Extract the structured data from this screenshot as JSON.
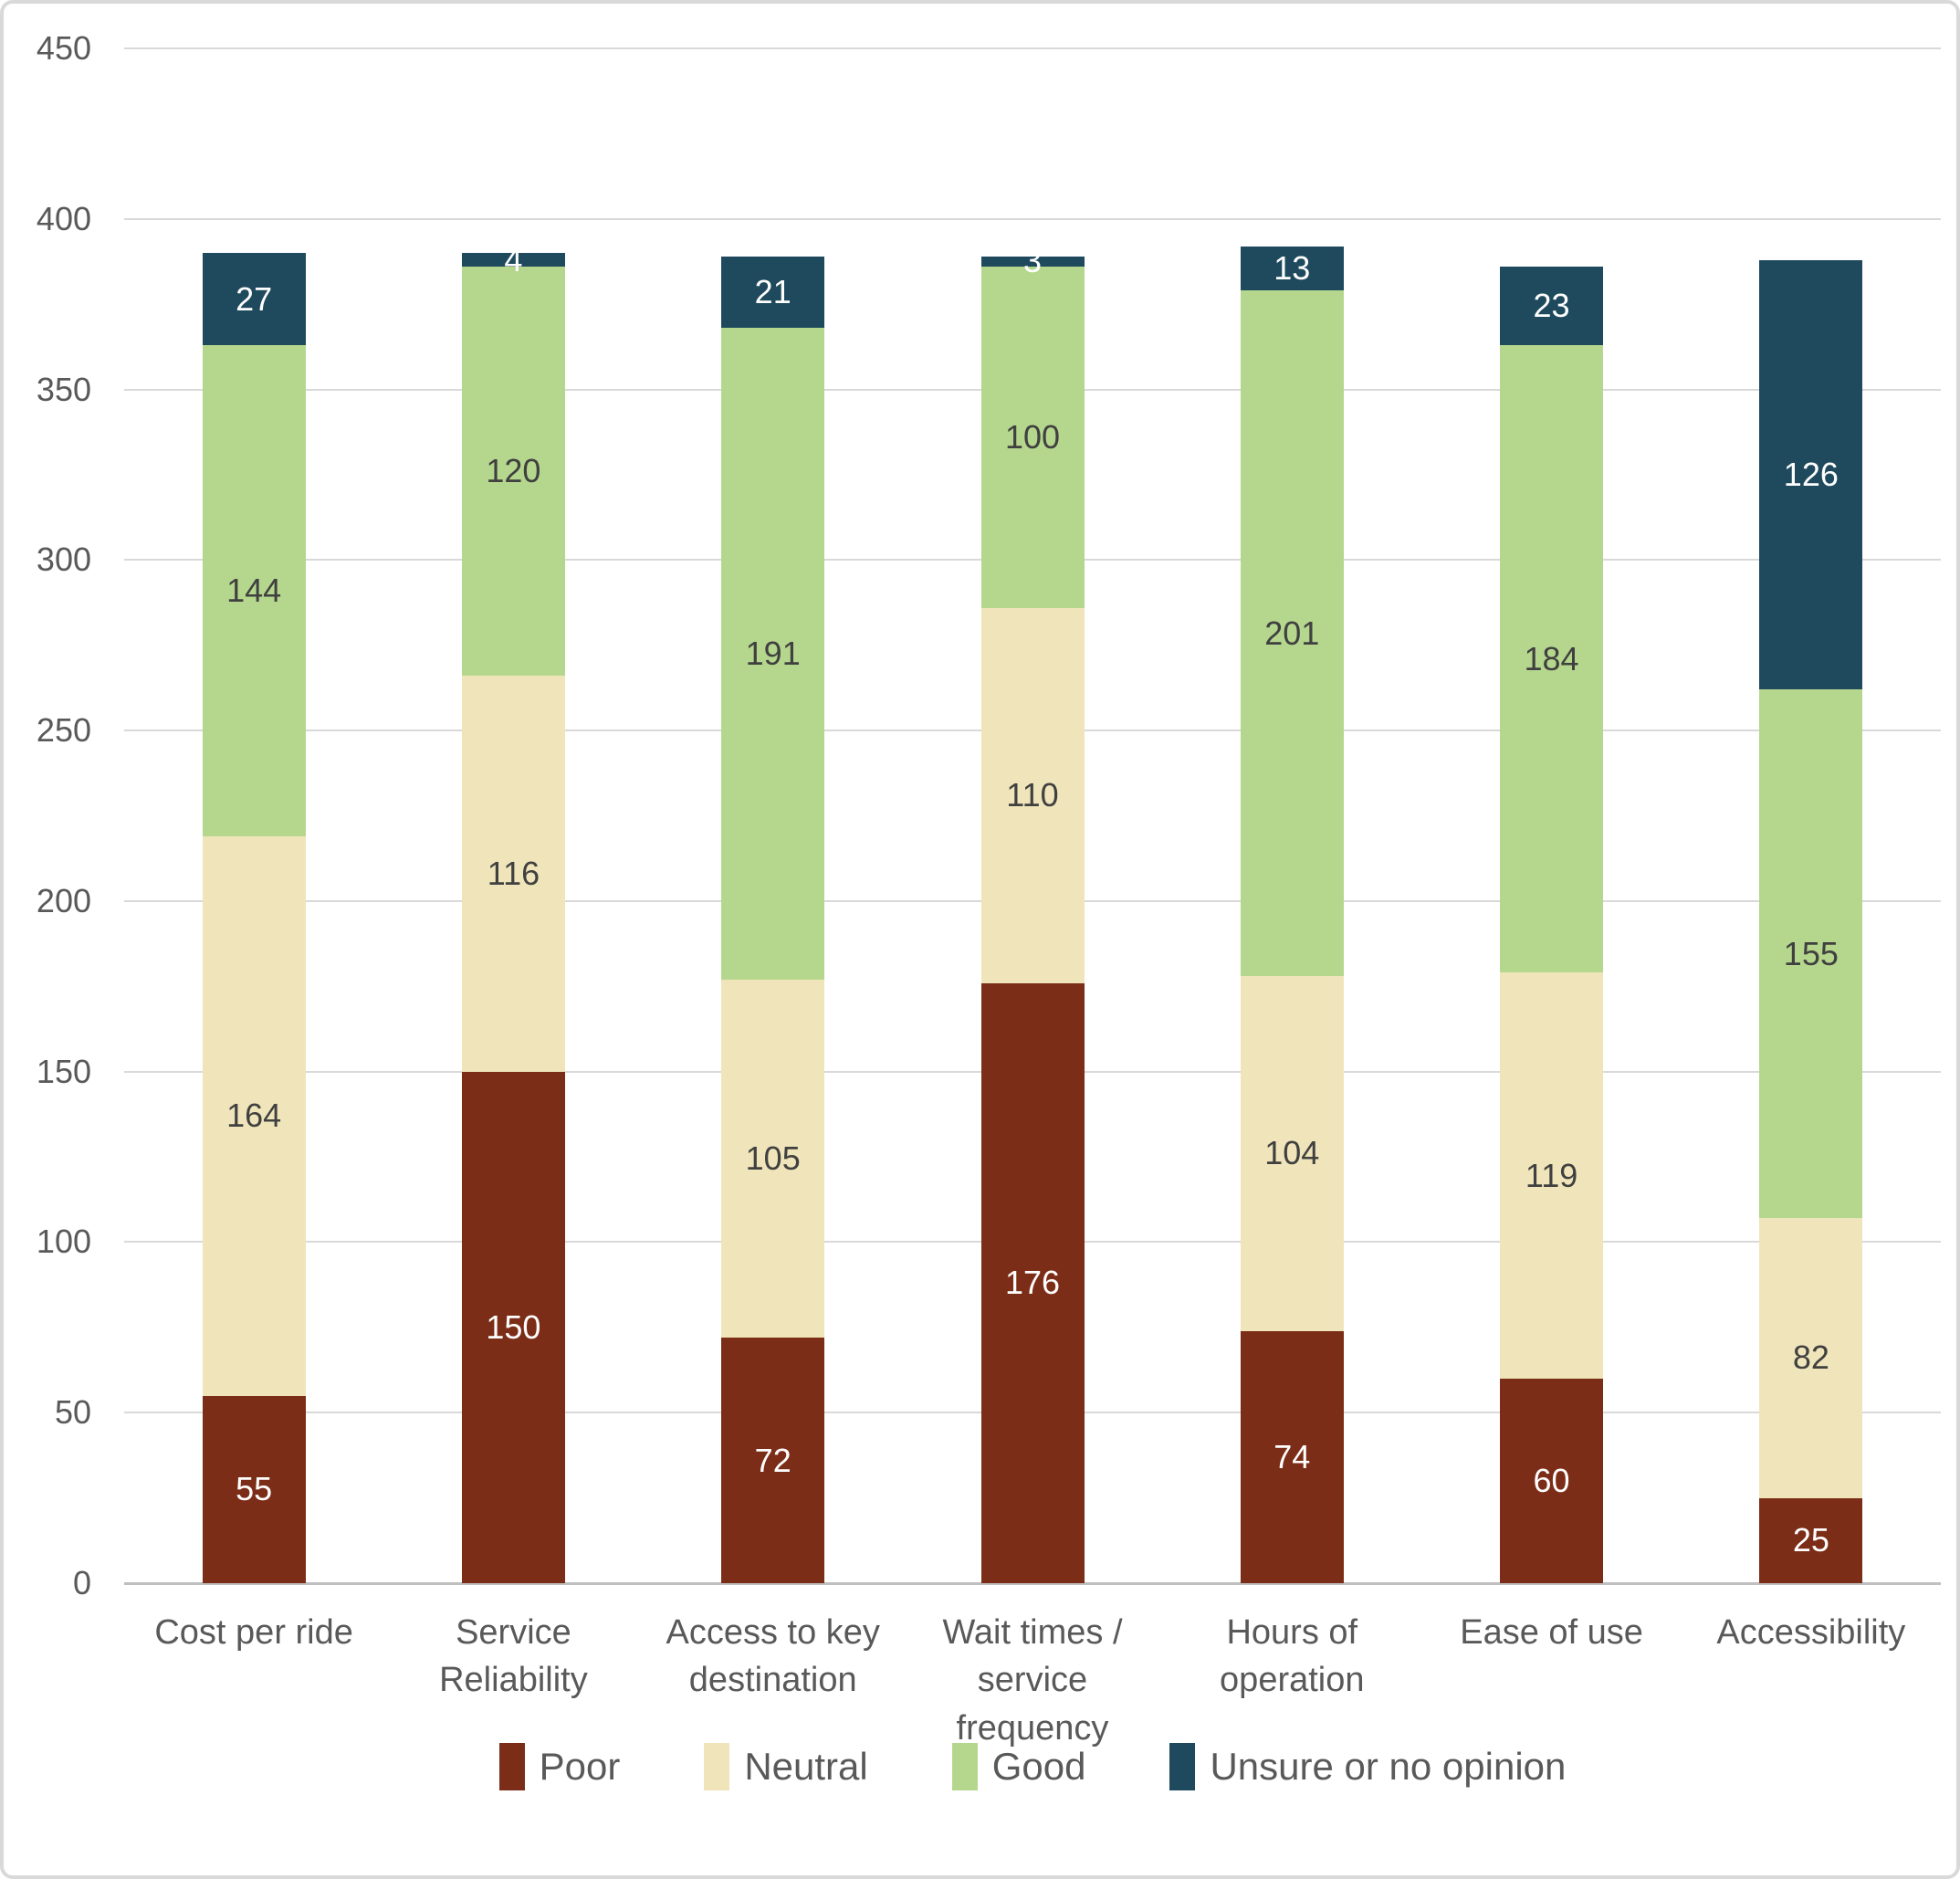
{
  "chart_data": {
    "type": "bar",
    "stacked": true,
    "orientation": "vertical",
    "title": "",
    "xlabel": "",
    "ylabel": "",
    "grid": true,
    "legend_position": "bottom",
    "categories": [
      "Cost per ride",
      "Service Reliability",
      "Access to key destination",
      "Wait times / service frequency",
      "Hours of operation",
      "Ease of use",
      "Accessibility"
    ],
    "category_label_lines": [
      [
        "Cost per ride"
      ],
      [
        "Service",
        "Reliability"
      ],
      [
        "Access to key",
        "destination"
      ],
      [
        "Wait times /",
        "service",
        "frequency"
      ],
      [
        "Hours of",
        "operation"
      ],
      [
        "Ease of use"
      ],
      [
        "Accessibility"
      ]
    ],
    "series": [
      {
        "name": "Poor",
        "color": "#7c2d17",
        "label_color": "#ffffff",
        "values": [
          55,
          150,
          72,
          176,
          74,
          60,
          25
        ]
      },
      {
        "name": "Neutral",
        "color": "#f0e5ba",
        "label_color": "#404040",
        "values": [
          164,
          116,
          105,
          110,
          104,
          119,
          82
        ]
      },
      {
        "name": "Good",
        "color": "#b5d78d",
        "label_color": "#404040",
        "values": [
          144,
          120,
          191,
          100,
          201,
          184,
          155
        ]
      },
      {
        "name": "Unsure or no opinion",
        "color": "#1f4a5e",
        "label_color": "#ffffff",
        "values": [
          27,
          4,
          21,
          3,
          13,
          23,
          126
        ]
      }
    ],
    "y_axis": {
      "min": 0,
      "max": 450,
      "step": 50,
      "ticks": [
        0,
        50,
        100,
        150,
        200,
        250,
        300,
        350,
        400,
        450
      ]
    },
    "ylim": [
      0,
      450
    ]
  },
  "colors": {
    "gridline": "#d9d9d9",
    "axis_baseline": "#bfbfbf",
    "axis_text": "#595959",
    "frame_border": "#d9d9d9",
    "background": "#ffffff"
  }
}
